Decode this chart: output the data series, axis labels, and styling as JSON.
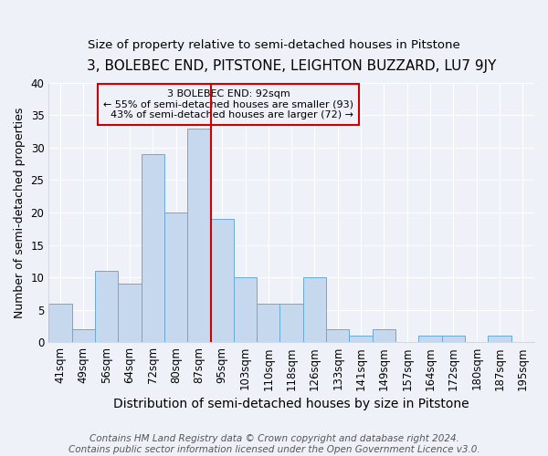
{
  "title": "3, BOLEBEC END, PITSTONE, LEIGHTON BUZZARD, LU7 9JY",
  "subtitle": "Size of property relative to semi-detached houses in Pitstone",
  "xlabel": "Distribution of semi-detached houses by size in Pitstone",
  "ylabel": "Number of semi-detached properties",
  "categories": [
    "41sqm",
    "49sqm",
    "56sqm",
    "64sqm",
    "72sqm",
    "80sqm",
    "87sqm",
    "95sqm",
    "103sqm",
    "110sqm",
    "118sqm",
    "126sqm",
    "133sqm",
    "141sqm",
    "149sqm",
    "157sqm",
    "164sqm",
    "172sqm",
    "180sqm",
    "187sqm",
    "195sqm"
  ],
  "values": [
    6,
    2,
    11,
    9,
    29,
    20,
    33,
    19,
    10,
    6,
    6,
    10,
    2,
    1,
    2,
    0,
    1,
    1,
    0,
    1,
    0
  ],
  "bar_color": "#c5d8ee",
  "bar_edge_color": "#6aaad4",
  "property_label": "3 BOLEBEC END: 92sqm",
  "pct_smaller": "55% of semi-detached houses are smaller (93)",
  "pct_larger": "43% of semi-detached houses are larger (72)",
  "vline_color": "#cc0000",
  "vline_x_index": 7,
  "annotation_box_color": "#cc0000",
  "ylim": [
    0,
    40
  ],
  "yticks": [
    0,
    5,
    10,
    15,
    20,
    25,
    30,
    35,
    40
  ],
  "bg_color": "#eef2f8",
  "grid_color": "#ffffff",
  "footer": "Contains HM Land Registry data © Crown copyright and database right 2024.\nContains public sector information licensed under the Open Government Licence v3.0.",
  "title_fontsize": 11,
  "subtitle_fontsize": 9.5,
  "xlabel_fontsize": 10,
  "ylabel_fontsize": 9,
  "tick_fontsize": 8.5,
  "footer_fontsize": 7.5
}
